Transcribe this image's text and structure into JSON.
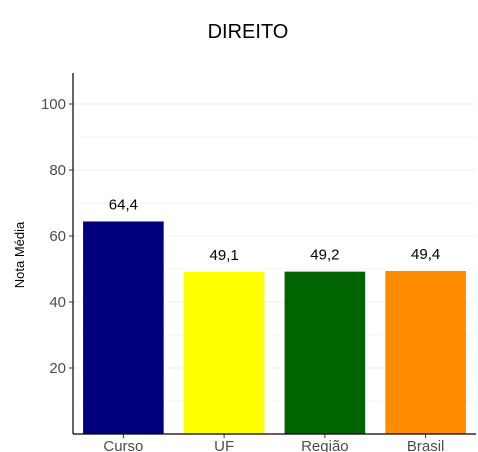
{
  "chart_data": {
    "type": "bar",
    "title": "DIREITO",
    "xlabel": "",
    "ylabel": "Nota Média",
    "categories": [
      "Curso",
      "UF",
      "Região",
      "Brasil"
    ],
    "values": [
      64.4,
      49.1,
      49.2,
      49.4
    ],
    "data_labels": [
      "64,4",
      "49,1",
      "49,2",
      "49,4"
    ],
    "colors": [
      "#00007f",
      "#ffff00",
      "#006400",
      "#ff8c00"
    ],
    "yticks": [
      20,
      40,
      60,
      80,
      100
    ],
    "ylim": [
      0,
      110
    ],
    "grid": true,
    "legend": "none"
  }
}
